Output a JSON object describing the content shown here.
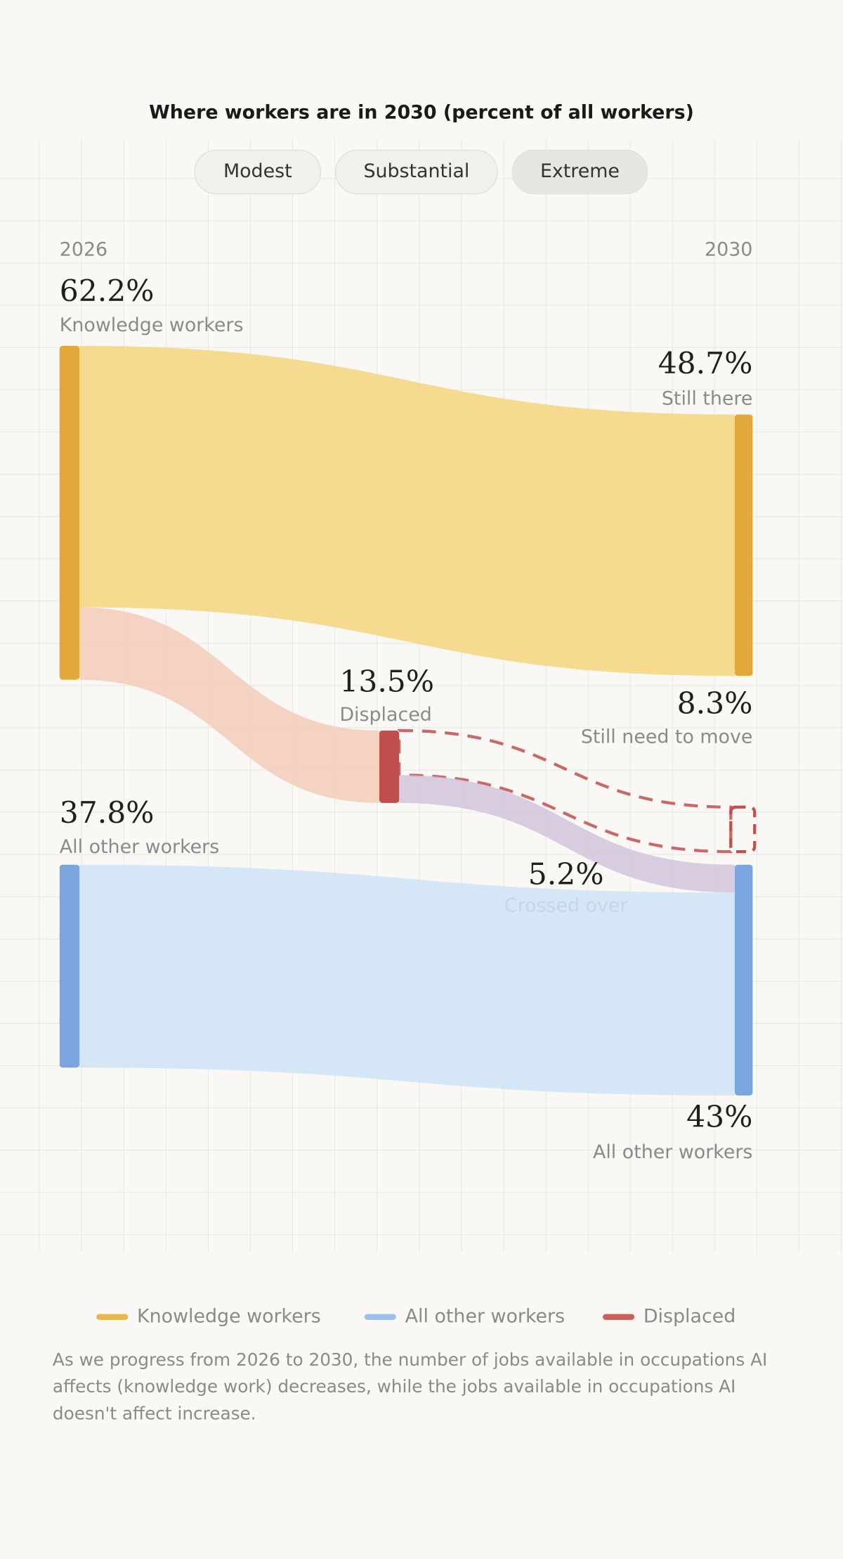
{
  "chart_data": {
    "type": "sankey",
    "title": "Where workers are in 2030 (percent of all workers)",
    "options": [
      "Modest",
      "Substantial",
      "Extreme"
    ],
    "selected_option": 2,
    "columns": [
      "2026",
      "2030"
    ],
    "nodes": [
      {
        "label": "Knowledge workers",
        "value": 62.2,
        "value_label": "62.2%",
        "color": "#e2a93a"
      },
      {
        "label": "Still there",
        "value": 48.7,
        "value_label": "48.7%",
        "color": "#e2a93a"
      },
      {
        "label": "Displaced",
        "value": 13.5,
        "value_label": "13.5%",
        "color": "#c0504d"
      },
      {
        "label": "Still need to move",
        "value": 8.3,
        "value_label": "8.3%",
        "color": "#c0504d",
        "dashed": true
      },
      {
        "label": "All other workers",
        "value": 37.8,
        "value_label": "37.8%",
        "color": "#7aa6df"
      },
      {
        "label": "All other workers",
        "value": 43,
        "value_label": "43%",
        "color": "#7aa6df"
      }
    ],
    "links": [
      {
        "source": 0,
        "target": 1,
        "value": 48.7,
        "color": "#f5d57c"
      },
      {
        "source": 0,
        "target": 2,
        "value": 13.5,
        "color": "#f4cdb8"
      },
      {
        "source": 2,
        "target": 3,
        "value": 8.3,
        "color": "#c0504d",
        "dashed": true
      },
      {
        "source": 2,
        "target": 5,
        "value": 5.2,
        "value_label": "5.2%",
        "label": "Crossed over",
        "color": "#d2c4dc"
      },
      {
        "source": 4,
        "target": 5,
        "value": 37.8,
        "color": "#cfe3f6"
      }
    ],
    "legend": [
      {
        "name": "Knowledge workers",
        "color": "#e7b84a"
      },
      {
        "name": "All other workers",
        "color": "#9cc0ea"
      },
      {
        "name": "Displaced",
        "color": "#c9605a"
      }
    ],
    "note": "As we progress from 2026 to 2030, the number of jobs available in occupations AI affects (knowledge work) decreases, while the jobs available in occupations AI doesn't affect increase."
  }
}
